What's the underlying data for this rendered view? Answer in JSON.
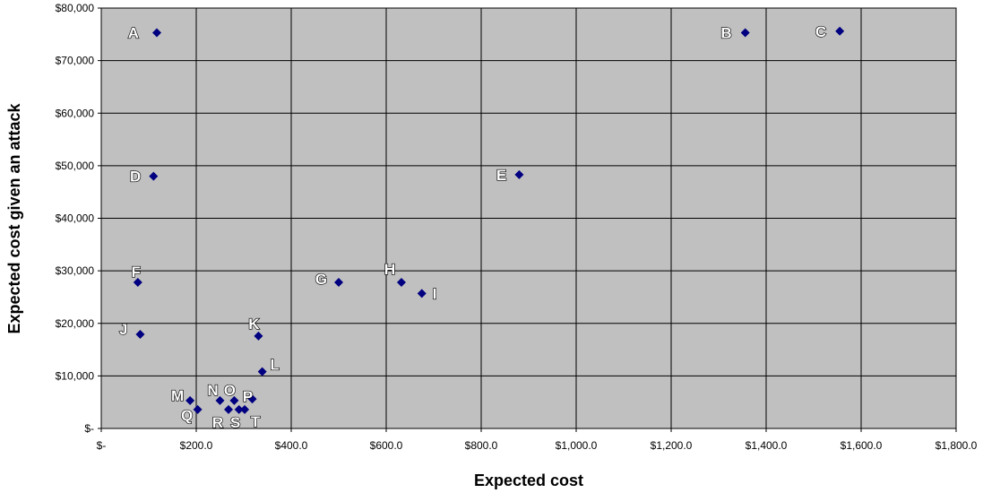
{
  "chart_data": {
    "type": "scatter",
    "title": "",
    "xlabel": "Expected cost",
    "ylabel": "Expected cost given an attack",
    "xlim": [
      0,
      1800
    ],
    "ylim": [
      0,
      80000
    ],
    "x_ticks": [
      0,
      200,
      400,
      600,
      800,
      1000,
      1200,
      1400,
      1600,
      1800
    ],
    "x_tick_labels": [
      "$-",
      "$200.0",
      "$400.0",
      "$600.0",
      "$800.0",
      "$1,000.0",
      "$1,200.0",
      "$1,400.0",
      "$1,600.0",
      "$1,800.0"
    ],
    "y_ticks": [
      0,
      10000,
      20000,
      30000,
      40000,
      50000,
      60000,
      70000,
      80000
    ],
    "y_tick_labels": [
      "$-",
      "$10,000",
      "$20,000",
      "$30,000",
      "$40,000",
      "$50,000",
      "$60,000",
      "$70,000",
      "$80,000"
    ],
    "grid": true,
    "plot_background": "#C0C0C0",
    "marker_color": "#000080",
    "marker": "diamond",
    "points": [
      {
        "label": "A",
        "x": 117,
        "y": 75300
      },
      {
        "label": "B",
        "x": 1356,
        "y": 75300
      },
      {
        "label": "C",
        "x": 1555,
        "y": 75600
      },
      {
        "label": "D",
        "x": 110,
        "y": 48000
      },
      {
        "label": "E",
        "x": 880,
        "y": 48300
      },
      {
        "label": "F",
        "x": 77,
        "y": 27800
      },
      {
        "label": "G",
        "x": 500,
        "y": 27800
      },
      {
        "label": "H",
        "x": 632,
        "y": 27800
      },
      {
        "label": "I",
        "x": 675,
        "y": 25700
      },
      {
        "label": "J",
        "x": 82,
        "y": 17900
      },
      {
        "label": "K",
        "x": 331,
        "y": 17600
      },
      {
        "label": "L",
        "x": 339,
        "y": 10800
      },
      {
        "label": "M",
        "x": 187,
        "y": 5300
      },
      {
        "label": "N",
        "x": 250,
        "y": 5300
      },
      {
        "label": "O",
        "x": 280,
        "y": 5300
      },
      {
        "label": "P",
        "x": 318,
        "y": 5600
      },
      {
        "label": "Q",
        "x": 203,
        "y": 3600
      },
      {
        "label": "R",
        "x": 268,
        "y": 3600
      },
      {
        "label": "S",
        "x": 290,
        "y": 3600
      },
      {
        "label": "T",
        "x": 302,
        "y": 3600
      }
    ]
  }
}
